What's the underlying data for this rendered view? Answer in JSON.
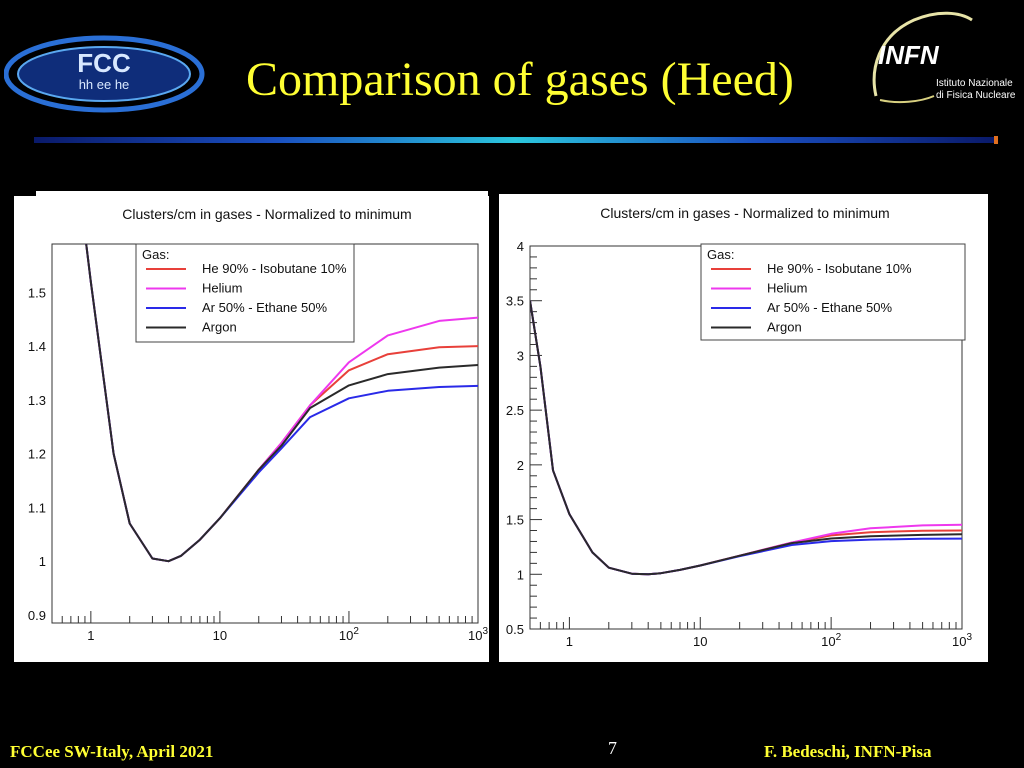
{
  "slide": {
    "title": "Comparison of gases (Heed)",
    "footer_left": "FCCee SW-Italy, April 2021",
    "page_number": "7",
    "footer_right": "F. Bedeschi, INFN-Pisa"
  },
  "logos": {
    "fcc_main": "FCC",
    "fcc_sub": "hh ee he",
    "infn_main": "INFN",
    "infn_line1": "Istituto Nazionale",
    "infn_line2": "di Fisica Nucleare"
  },
  "colors": {
    "title": "#ffff33",
    "footer": "#ffff33",
    "he_isobutane": "#e8403a",
    "helium": "#ee38ee",
    "ar_ethane": "#2a2ae8",
    "argon": "#2a2a2a"
  },
  "chart_data": [
    {
      "type": "line",
      "title": "Clusters/cm in gases - Normalized to minimum",
      "xscale": "log",
      "xlim": [
        0.5,
        1000
      ],
      "ylim": [
        0.885,
        1.59
      ],
      "x_ticks": [
        {
          "label": "1",
          "value": 1
        },
        {
          "label": "10",
          "value": 10
        },
        {
          "label": "10",
          "sup": "2",
          "value": 100
        },
        {
          "label": "10",
          "sup": "3",
          "value": 1000
        }
      ],
      "y_ticks": [
        {
          "label": "0.9",
          "value": 0.9
        },
        {
          "label": "1",
          "value": 1.0
        },
        {
          "label": "1.1",
          "value": 1.1
        },
        {
          "label": "1.2",
          "value": 1.2
        },
        {
          "label": "1.3",
          "value": 1.3
        },
        {
          "label": "1.4",
          "value": 1.4
        },
        {
          "label": "1.5",
          "value": 1.5
        }
      ],
      "legend_title": "Gas:",
      "legend_position": "top-left",
      "series": [
        {
          "name": "He 90% - Isobutane 10%",
          "color": "#e8403a",
          "x": [
            0.92,
            1,
            1.5,
            2,
            3,
            4,
            5,
            7,
            10,
            20,
            30,
            50,
            100,
            200,
            500,
            1000
          ],
          "y": [
            1.59,
            1.52,
            1.2,
            1.07,
            1.005,
            1.0,
            1.01,
            1.04,
            1.08,
            1.17,
            1.22,
            1.29,
            1.355,
            1.385,
            1.398,
            1.4
          ]
        },
        {
          "name": "Helium",
          "color": "#ee38ee",
          "x": [
            0.92,
            1,
            1.5,
            2,
            3,
            4,
            5,
            7,
            10,
            20,
            30,
            50,
            100,
            200,
            500,
            1000
          ],
          "y": [
            1.59,
            1.52,
            1.2,
            1.07,
            1.005,
            1.0,
            1.01,
            1.04,
            1.08,
            1.17,
            1.22,
            1.29,
            1.37,
            1.42,
            1.447,
            1.453
          ]
        },
        {
          "name": "Ar 50% - Ethane 50%",
          "color": "#2a2ae8",
          "x": [
            0.92,
            1,
            1.5,
            2,
            3,
            4,
            5,
            7,
            10,
            20,
            30,
            50,
            100,
            200,
            500,
            1000
          ],
          "y": [
            1.59,
            1.52,
            1.2,
            1.07,
            1.005,
            1.0,
            1.01,
            1.04,
            1.08,
            1.165,
            1.21,
            1.268,
            1.303,
            1.317,
            1.324,
            1.326
          ]
        },
        {
          "name": "Argon",
          "color": "#2a2a2a",
          "x": [
            0.92,
            1,
            1.5,
            2,
            3,
            4,
            5,
            7,
            10,
            20,
            30,
            50,
            100,
            200,
            500,
            1000
          ],
          "y": [
            1.59,
            1.52,
            1.2,
            1.07,
            1.005,
            1.0,
            1.01,
            1.04,
            1.08,
            1.17,
            1.215,
            1.285,
            1.327,
            1.348,
            1.36,
            1.365
          ]
        }
      ]
    },
    {
      "type": "line",
      "title": "Clusters/cm in gases - Normalized to minimum",
      "xscale": "log",
      "xlim": [
        0.5,
        1000
      ],
      "ylim": [
        0.5,
        4
      ],
      "x_ticks": [
        {
          "label": "1",
          "value": 1
        },
        {
          "label": "10",
          "value": 10
        },
        {
          "label": "10",
          "sup": "2",
          "value": 100
        },
        {
          "label": "10",
          "sup": "3",
          "value": 1000
        }
      ],
      "y_ticks": [
        {
          "label": "0.5",
          "value": 0.5
        },
        {
          "label": "1",
          "value": 1
        },
        {
          "label": "1.5",
          "value": 1.5
        },
        {
          "label": "2",
          "value": 2
        },
        {
          "label": "2.5",
          "value": 2.5
        },
        {
          "label": "3",
          "value": 3
        },
        {
          "label": "3.5",
          "value": 3.5
        },
        {
          "label": "4",
          "value": 4
        }
      ],
      "legend_title": "Gas:",
      "legend_position": "top-right",
      "series": [
        {
          "name": "He 90% - Isobutane 10%",
          "color": "#e8403a",
          "x": [
            0.5,
            0.6,
            0.75,
            1,
            1.5,
            2,
            3,
            4,
            5,
            7,
            10,
            20,
            50,
            100,
            200,
            500,
            1000
          ],
          "y": [
            3.5,
            2.9,
            1.95,
            1.55,
            1.2,
            1.06,
            1.005,
            1.0,
            1.01,
            1.04,
            1.08,
            1.17,
            1.29,
            1.355,
            1.385,
            1.398,
            1.4
          ]
        },
        {
          "name": "Helium",
          "color": "#ee38ee",
          "x": [
            0.5,
            0.6,
            0.75,
            1,
            1.5,
            2,
            3,
            4,
            5,
            7,
            10,
            20,
            50,
            100,
            200,
            500,
            1000
          ],
          "y": [
            3.5,
            2.9,
            1.95,
            1.55,
            1.2,
            1.06,
            1.005,
            1.0,
            1.01,
            1.04,
            1.08,
            1.17,
            1.29,
            1.37,
            1.42,
            1.447,
            1.453
          ]
        },
        {
          "name": "Ar 50% - Ethane 50%",
          "color": "#2a2ae8",
          "x": [
            0.5,
            0.6,
            0.75,
            1,
            1.5,
            2,
            3,
            4,
            5,
            7,
            10,
            20,
            50,
            100,
            200,
            500,
            1000
          ],
          "y": [
            3.5,
            2.9,
            1.95,
            1.55,
            1.2,
            1.06,
            1.005,
            1.0,
            1.01,
            1.04,
            1.08,
            1.165,
            1.268,
            1.303,
            1.317,
            1.324,
            1.326
          ]
        },
        {
          "name": "Argon",
          "color": "#2a2a2a",
          "x": [
            0.5,
            0.6,
            0.75,
            1,
            1.5,
            2,
            3,
            4,
            5,
            7,
            10,
            20,
            50,
            100,
            200,
            500,
            1000
          ],
          "y": [
            3.5,
            2.9,
            1.95,
            1.55,
            1.2,
            1.06,
            1.005,
            1.0,
            1.01,
            1.04,
            1.08,
            1.17,
            1.285,
            1.327,
            1.348,
            1.36,
            1.365
          ]
        }
      ]
    }
  ]
}
